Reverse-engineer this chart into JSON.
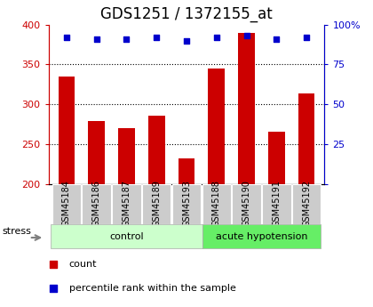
{
  "title": "GDS1251 / 1372155_at",
  "samples": [
    "GSM45184",
    "GSM45186",
    "GSM45187",
    "GSM45189",
    "GSM45193",
    "GSM45188",
    "GSM45190",
    "GSM45191",
    "GSM45192"
  ],
  "counts": [
    335,
    279,
    270,
    286,
    232,
    345,
    390,
    266,
    314
  ],
  "percentiles": [
    92,
    91,
    91,
    92,
    90,
    92,
    93,
    91,
    92
  ],
  "control_label": "control",
  "acute_label": "acute hypotension",
  "stress_label": "stress",
  "ylim_left": [
    200,
    400
  ],
  "ylim_right": [
    0,
    100
  ],
  "yticks_left": [
    200,
    250,
    300,
    350,
    400
  ],
  "yticks_right": [
    0,
    25,
    50,
    75,
    100
  ],
  "bar_color": "#cc0000",
  "dot_color": "#0000cc",
  "bar_bottom": 200,
  "control_bg": "#ccffcc",
  "acute_bg": "#66ee66",
  "tick_label_bg": "#cccccc",
  "legend_count_label": "count",
  "legend_pct_label": "percentile rank within the sample",
  "title_fontsize": 12,
  "tick_fontsize": 8,
  "label_fontsize": 7,
  "group_fontsize": 8
}
